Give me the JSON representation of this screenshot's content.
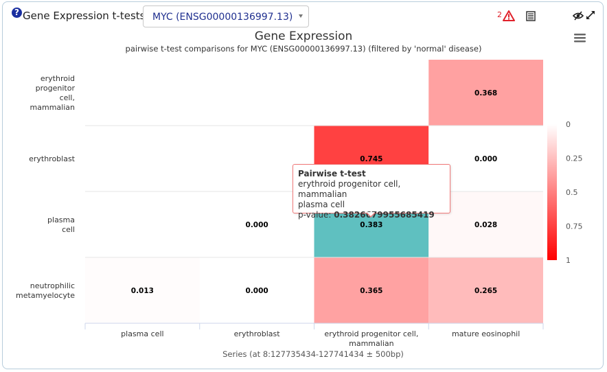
{
  "header": {
    "help_symbol": "?",
    "label": "Gene Expression t-tests on",
    "selected_gene": "MYC (ENSG00000136997.13)",
    "warning_count": "2"
  },
  "chart_data": {
    "type": "heatmap",
    "title": "Gene Expression",
    "subtitle": "pairwise t-test comparisons for MYC (ENSG00000136997.13) (filtered by 'normal' disease)",
    "xlabel": "Series (at 8:127735434-127741434 ± 500bp)",
    "categories_x": [
      "plasma cell",
      "erythroblast",
      "erythroid progenitor cell, mammalian",
      "mature eosinophil"
    ],
    "categories_y": [
      "erythroid progenitor cell, mammalian",
      "erythroblast",
      "plasma cell",
      "neutrophilic metamyelocyte"
    ],
    "cells": [
      {
        "x": 3,
        "y": 0,
        "value": 0.368,
        "label": "0.368"
      },
      {
        "x": 2,
        "y": 1,
        "value": 0.745,
        "label": "0.745"
      },
      {
        "x": 3,
        "y": 1,
        "value": 0.0,
        "label": "0.000"
      },
      {
        "x": 1,
        "y": 2,
        "value": 0.0,
        "label": "0.000"
      },
      {
        "x": 2,
        "y": 2,
        "value": 0.383,
        "label": "0.383",
        "highlighted": true
      },
      {
        "x": 3,
        "y": 2,
        "value": 0.028,
        "label": "0.028"
      },
      {
        "x": 0,
        "y": 3,
        "value": 0.013,
        "label": "0.013"
      },
      {
        "x": 1,
        "y": 3,
        "value": 0.0,
        "label": "0.000"
      },
      {
        "x": 2,
        "y": 3,
        "value": 0.365,
        "label": "0.365"
      },
      {
        "x": 3,
        "y": 3,
        "value": 0.265,
        "label": "0.265"
      }
    ],
    "colorAxis": {
      "min": 0,
      "max": 1,
      "ticks": [
        "0",
        "0.25",
        "0.5",
        "0.75",
        "1"
      ],
      "minColor": "#ffffff",
      "maxColor": "#ff0000"
    },
    "highlight_color": "#5fc0c0"
  },
  "tooltip": {
    "title": "Pairwise t-test",
    "line1": "erythroid progenitor cell, mammalian",
    "line2": "plasma cell",
    "pvalue_label": "p-value: ",
    "pvalue": "0.3826679955685419"
  }
}
